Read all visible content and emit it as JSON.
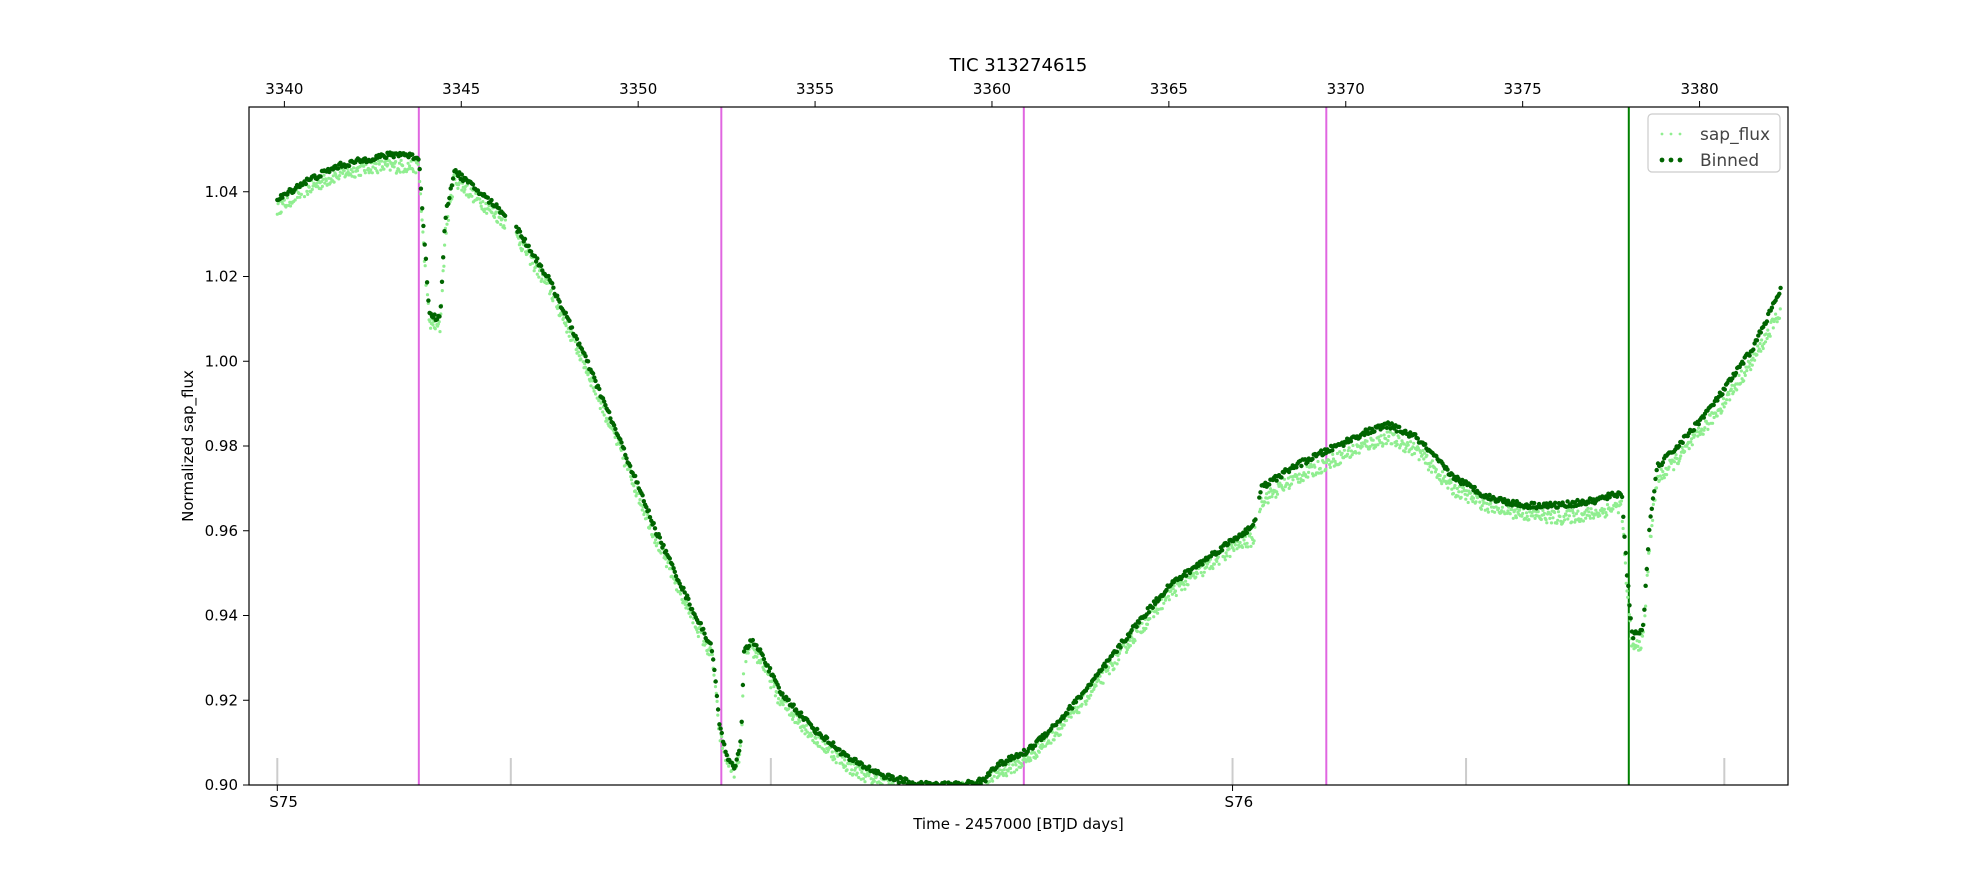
{
  "chart_data": {
    "type": "scatter",
    "title": "TIC 313274615",
    "xlabel": "Time - 2457000 [BTJD days]",
    "ylabel": "Normalized sap_flux",
    "xlim": [
      3339.0,
      3382.5
    ],
    "ylim": [
      0.9,
      1.06
    ],
    "xticks": [
      3340,
      3345,
      3350,
      3355,
      3360,
      3365,
      3370,
      3375,
      3380
    ],
    "yticks": [
      0.9,
      0.92,
      0.94,
      0.96,
      0.98,
      1.0,
      1.02,
      1.04
    ],
    "ytick_labels": [
      "0.90",
      "0.92",
      "0.94",
      "0.96",
      "0.98",
      "1.00",
      "1.02",
      "1.04"
    ],
    "legend": {
      "position": "top-right",
      "entries": [
        "sap_flux",
        "Binned"
      ]
    },
    "series": [
      {
        "name": "sap_flux",
        "color": "#90ee90",
        "style": "small-points",
        "x": [
          3339.8,
          3340.5,
          3341.5,
          3342.5,
          3343.3,
          3343.8,
          3343.95,
          3344.1,
          3344.4,
          3344.55,
          3344.8,
          3345.5,
          3346.2,
          3346.6,
          3347.5,
          3348.5,
          3349.5,
          3350.5,
          3351.5,
          3352.1,
          3352.3,
          3352.5,
          3352.75,
          3352.9,
          3353.0,
          3353.2,
          3353.5,
          3354.0,
          3355.0,
          3356.0,
          3357.0,
          3358.0,
          3359.0,
          3359.8,
          3360.0,
          3361.0,
          3362.0,
          3363.0,
          3364.0,
          3365.0,
          3366.0,
          3367.0,
          3367.4,
          3367.6,
          3368.5,
          3369.5,
          3370.5,
          3371.2,
          3372.0,
          3373.0,
          3374.0,
          3375.0,
          3376.0,
          3377.0,
          3377.8,
          3377.95,
          3378.1,
          3378.4,
          3378.6,
          3378.8,
          3379.5,
          3380.5,
          3381.5,
          3382.3
        ],
        "y": [
          1.036,
          1.04,
          1.044,
          1.046,
          1.046,
          1.046,
          1.025,
          1.009,
          1.008,
          1.03,
          1.043,
          1.038,
          1.033,
          1.029,
          1.017,
          0.999,
          0.979,
          0.958,
          0.94,
          0.93,
          0.912,
          0.906,
          0.903,
          0.908,
          0.93,
          0.932,
          0.929,
          0.92,
          0.911,
          0.904,
          0.9,
          0.898,
          0.899,
          0.9,
          0.902,
          0.906,
          0.914,
          0.924,
          0.935,
          0.945,
          0.951,
          0.957,
          0.958,
          0.967,
          0.972,
          0.976,
          0.98,
          0.982,
          0.979,
          0.97,
          0.966,
          0.964,
          0.963,
          0.964,
          0.966,
          0.945,
          0.932,
          0.934,
          0.958,
          0.972,
          0.978,
          0.988,
          1.0,
          1.012
        ]
      },
      {
        "name": "Binned",
        "color": "#006400",
        "style": "dots",
        "x": [
          3339.8,
          3340.5,
          3341.5,
          3342.5,
          3343.3,
          3343.8,
          3343.95,
          3344.1,
          3344.4,
          3344.55,
          3344.8,
          3345.5,
          3346.2,
          3346.6,
          3347.5,
          3348.5,
          3349.5,
          3350.5,
          3351.5,
          3352.1,
          3352.3,
          3352.5,
          3352.75,
          3352.9,
          3353.0,
          3353.2,
          3353.5,
          3354.0,
          3355.0,
          3356.0,
          3357.0,
          3358.0,
          3359.0,
          3359.8,
          3360.0,
          3361.0,
          3362.0,
          3363.0,
          3364.0,
          3365.0,
          3366.0,
          3367.0,
          3367.4,
          3367.6,
          3368.5,
          3369.5,
          3370.5,
          3371.2,
          3372.0,
          3373.0,
          3374.0,
          3375.0,
          3376.0,
          3377.0,
          3377.8,
          3377.95,
          3378.1,
          3378.4,
          3378.6,
          3378.8,
          3379.5,
          3380.5,
          3381.5,
          3382.3
        ],
        "y": [
          1.038,
          1.042,
          1.046,
          1.048,
          1.049,
          1.048,
          1.03,
          1.011,
          1.01,
          1.034,
          1.045,
          1.04,
          1.035,
          1.031,
          1.019,
          1.001,
          0.981,
          0.96,
          0.942,
          0.932,
          0.914,
          0.907,
          0.904,
          0.91,
          0.932,
          0.934,
          0.931,
          0.922,
          0.913,
          0.906,
          0.902,
          0.9,
          0.9,
          0.901,
          0.904,
          0.908,
          0.916,
          0.926,
          0.937,
          0.947,
          0.953,
          0.959,
          0.961,
          0.97,
          0.975,
          0.979,
          0.983,
          0.985,
          0.982,
          0.973,
          0.968,
          0.966,
          0.966,
          0.967,
          0.969,
          0.95,
          0.935,
          0.937,
          0.962,
          0.975,
          0.981,
          0.991,
          1.003,
          1.017
        ]
      }
    ],
    "vertical_lines": [
      {
        "x": 3343.8,
        "color": "#e066e0"
      },
      {
        "x": 3352.35,
        "color": "#e066e0"
      },
      {
        "x": 3360.9,
        "color": "#e066e0"
      },
      {
        "x": 3369.45,
        "color": "#e066e0"
      },
      {
        "x": 3378.0,
        "color": "#008000"
      }
    ],
    "sector_marks": [
      {
        "x": 3339.8,
        "label": "S75"
      },
      {
        "x": 3346.4,
        "label": ""
      },
      {
        "x": 3353.75,
        "label": ""
      },
      {
        "x": 3366.8,
        "label": "S76"
      },
      {
        "x": 3373.4,
        "label": ""
      },
      {
        "x": 3380.7,
        "label": ""
      }
    ]
  }
}
